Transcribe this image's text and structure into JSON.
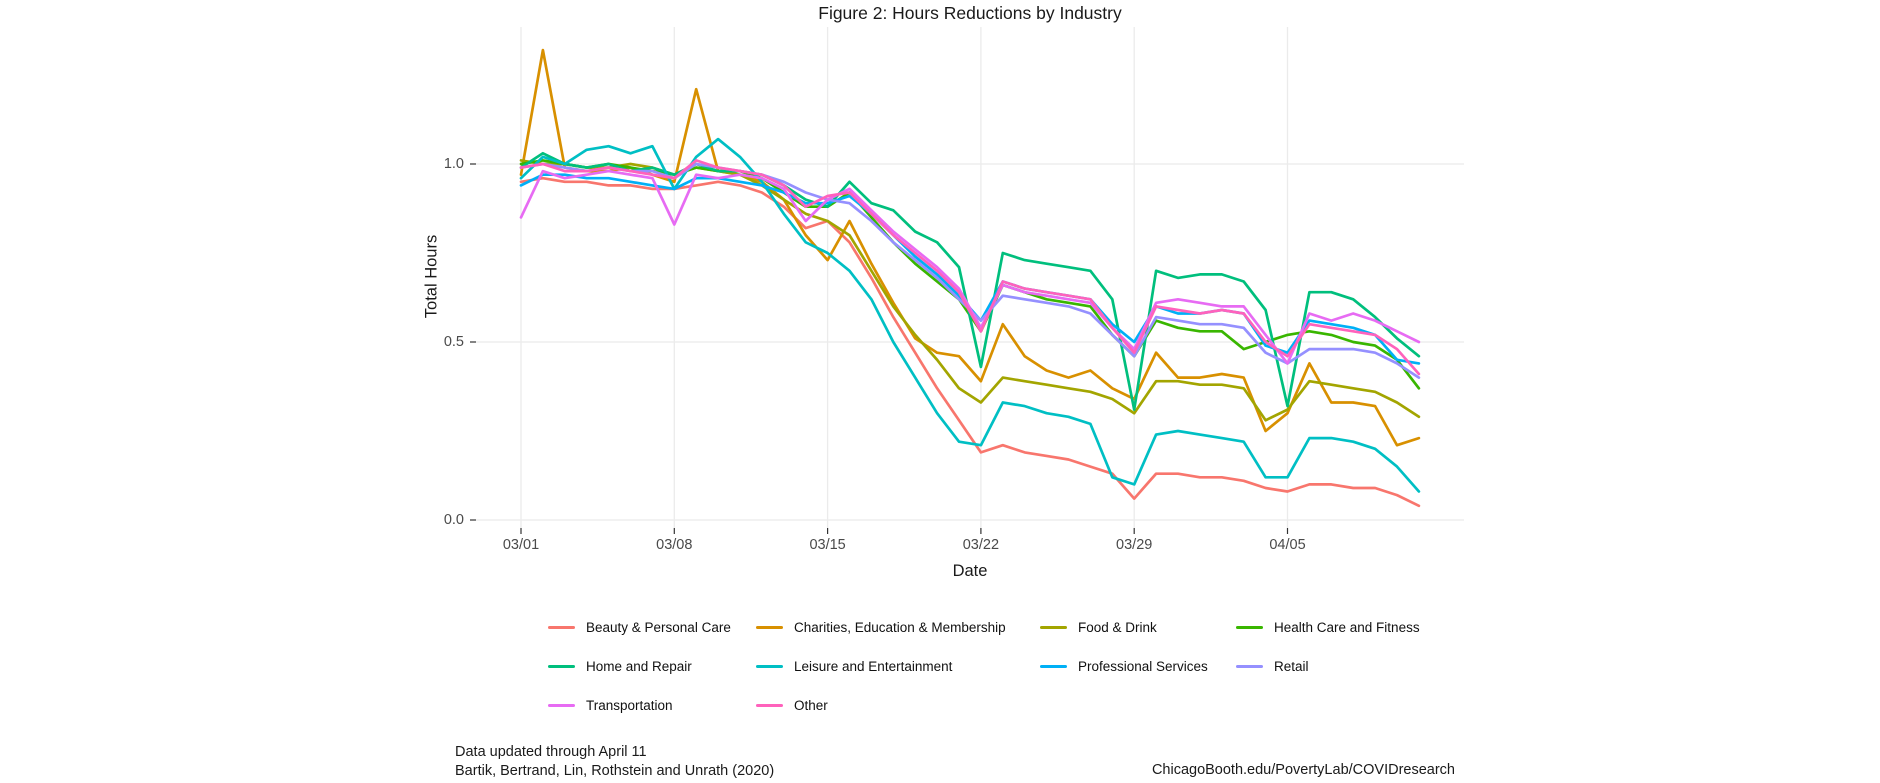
{
  "title": "Figure 2: Hours Reductions by Industry",
  "footer": {
    "note_line1": "Data updated through April 11",
    "note_line2": "Bartik, Bertrand, Lin, Rothstein and Unrath (2020)",
    "source": "ChicagoBooth.edu/PovertyLab/COVIDresearch"
  },
  "chart_data": {
    "type": "line",
    "title": "Figure 2: Hours Reductions by Industry",
    "xlabel": "Date",
    "ylabel": "Total Hours",
    "grid": "white panel, light gray major gridlines, horizontal at each y tick and vertical at each weekly x tick",
    "legend_position": "bottom",
    "ylim": [
      -0.02,
      1.38
    ],
    "x": [
      "03/01",
      "03/02",
      "03/03",
      "03/04",
      "03/05",
      "03/06",
      "03/07",
      "03/08",
      "03/09",
      "03/10",
      "03/11",
      "03/12",
      "03/13",
      "03/14",
      "03/15",
      "03/16",
      "03/17",
      "03/18",
      "03/19",
      "03/20",
      "03/21",
      "03/22",
      "03/23",
      "03/24",
      "03/25",
      "03/26",
      "03/27",
      "03/28",
      "03/29",
      "03/30",
      "03/31",
      "04/01",
      "04/02",
      "04/03",
      "04/04",
      "04/05",
      "04/06",
      "04/07",
      "04/08",
      "04/09",
      "04/10",
      "04/11"
    ],
    "x_ticks": [
      {
        "label": "03/01",
        "index": 0
      },
      {
        "label": "03/08",
        "index": 7
      },
      {
        "label": "03/15",
        "index": 14
      },
      {
        "label": "03/22",
        "index": 21
      },
      {
        "label": "03/29",
        "index": 28
      },
      {
        "label": "04/05",
        "index": 35
      }
    ],
    "y_ticks": [
      {
        "label": "0.0",
        "value": 0.0
      },
      {
        "label": "0.5",
        "value": 0.5
      },
      {
        "label": "1.0",
        "value": 1.0
      }
    ],
    "series": [
      {
        "name": "Beauty & Personal Care",
        "color": "#F8766D",
        "values": [
          0.95,
          0.96,
          0.95,
          0.95,
          0.94,
          0.94,
          0.93,
          0.93,
          0.94,
          0.95,
          0.94,
          0.92,
          0.88,
          0.82,
          0.84,
          0.78,
          0.68,
          0.57,
          0.47,
          0.37,
          0.28,
          0.19,
          0.21,
          0.19,
          0.18,
          0.17,
          0.15,
          0.13,
          0.06,
          0.13,
          0.13,
          0.12,
          0.12,
          0.11,
          0.09,
          0.08,
          0.1,
          0.1,
          0.09,
          0.09,
          0.07,
          0.04
        ]
      },
      {
        "name": "Charities, Education & Membership",
        "color": "#D89000",
        "values": [
          0.97,
          1.32,
          0.99,
          0.98,
          0.98,
          0.99,
          0.97,
          0.95,
          1.21,
          0.98,
          0.97,
          0.95,
          0.9,
          0.8,
          0.73,
          0.84,
          0.72,
          0.61,
          0.51,
          0.47,
          0.46,
          0.39,
          0.55,
          0.46,
          0.42,
          0.4,
          0.42,
          0.37,
          0.34,
          0.47,
          0.4,
          0.4,
          0.41,
          0.4,
          0.25,
          0.3,
          0.44,
          0.33,
          0.33,
          0.32,
          0.21,
          0.23
        ]
      },
      {
        "name": "Food & Drink",
        "color": "#A3A500",
        "values": [
          1.01,
          1.0,
          1.0,
          0.99,
          0.99,
          1.0,
          0.99,
          0.97,
          0.99,
          0.98,
          0.97,
          0.94,
          0.9,
          0.86,
          0.84,
          0.8,
          0.7,
          0.6,
          0.52,
          0.45,
          0.37,
          0.33,
          0.4,
          0.39,
          0.38,
          0.37,
          0.36,
          0.34,
          0.3,
          0.39,
          0.39,
          0.38,
          0.38,
          0.37,
          0.28,
          0.31,
          0.39,
          0.38,
          0.37,
          0.36,
          0.33,
          0.29
        ]
      },
      {
        "name": "Health Care and Fitness",
        "color": "#39B600",
        "values": [
          1.0,
          1.01,
          1.0,
          0.99,
          1.0,
          0.99,
          0.98,
          0.97,
          0.99,
          0.98,
          0.98,
          0.96,
          0.92,
          0.88,
          0.88,
          0.92,
          0.85,
          0.78,
          0.72,
          0.67,
          0.62,
          0.53,
          0.66,
          0.64,
          0.62,
          0.61,
          0.6,
          0.52,
          0.46,
          0.56,
          0.54,
          0.53,
          0.53,
          0.48,
          0.5,
          0.52,
          0.53,
          0.52,
          0.5,
          0.49,
          0.45,
          0.37
        ]
      },
      {
        "name": "Home and Repair",
        "color": "#00BF7D",
        "values": [
          0.99,
          1.03,
          1.0,
          0.99,
          1.0,
          0.98,
          0.99,
          0.97,
          1.0,
          0.98,
          0.98,
          0.97,
          0.94,
          0.9,
          0.88,
          0.95,
          0.89,
          0.87,
          0.81,
          0.78,
          0.71,
          0.43,
          0.75,
          0.73,
          0.72,
          0.71,
          0.7,
          0.62,
          0.31,
          0.7,
          0.68,
          0.69,
          0.69,
          0.67,
          0.59,
          0.32,
          0.64,
          0.64,
          0.62,
          0.57,
          0.51,
          0.46
        ]
      },
      {
        "name": "Leisure and Entertainment",
        "color": "#00BFC4",
        "values": [
          0.96,
          1.02,
          1.0,
          1.04,
          1.05,
          1.03,
          1.05,
          0.93,
          1.02,
          1.07,
          1.02,
          0.95,
          0.86,
          0.78,
          0.75,
          0.7,
          0.62,
          0.5,
          0.4,
          0.3,
          0.22,
          0.21,
          0.33,
          0.32,
          0.3,
          0.29,
          0.27,
          0.12,
          0.1,
          0.24,
          0.25,
          0.24,
          0.23,
          0.22,
          0.12,
          0.12,
          0.23,
          0.23,
          0.22,
          0.2,
          0.15,
          0.08
        ]
      },
      {
        "name": "Professional Services",
        "color": "#00B0F6",
        "values": [
          0.94,
          0.97,
          0.97,
          0.96,
          0.96,
          0.95,
          0.94,
          0.93,
          0.96,
          0.96,
          0.95,
          0.94,
          0.92,
          0.89,
          0.89,
          0.91,
          0.86,
          0.8,
          0.74,
          0.69,
          0.63,
          0.56,
          0.67,
          0.65,
          0.64,
          0.63,
          0.62,
          0.55,
          0.5,
          0.6,
          0.58,
          0.58,
          0.59,
          0.58,
          0.49,
          0.47,
          0.56,
          0.55,
          0.54,
          0.52,
          0.45,
          0.44
        ]
      },
      {
        "name": "Retail",
        "color": "#9590FF",
        "values": [
          0.99,
          1.0,
          0.99,
          0.98,
          0.99,
          0.98,
          0.98,
          0.96,
          1.0,
          0.99,
          0.98,
          0.97,
          0.95,
          0.92,
          0.9,
          0.89,
          0.84,
          0.78,
          0.73,
          0.68,
          0.62,
          0.56,
          0.63,
          0.62,
          0.61,
          0.6,
          0.58,
          0.52,
          0.46,
          0.57,
          0.56,
          0.55,
          0.55,
          0.54,
          0.47,
          0.44,
          0.48,
          0.48,
          0.48,
          0.47,
          0.44,
          0.4
        ]
      },
      {
        "name": "Transportation",
        "color": "#E76BF3",
        "values": [
          0.85,
          0.98,
          0.96,
          0.97,
          0.98,
          0.97,
          0.96,
          0.83,
          0.97,
          0.96,
          0.97,
          0.96,
          0.93,
          0.84,
          0.9,
          0.93,
          0.87,
          0.81,
          0.76,
          0.71,
          0.65,
          0.54,
          0.66,
          0.64,
          0.63,
          0.62,
          0.61,
          0.54,
          0.48,
          0.61,
          0.62,
          0.61,
          0.6,
          0.6,
          0.52,
          0.44,
          0.58,
          0.56,
          0.58,
          0.56,
          0.53,
          0.5
        ]
      },
      {
        "name": "Other",
        "color": "#FF62BC",
        "values": [
          0.99,
          1.0,
          0.98,
          0.98,
          0.99,
          0.98,
          0.97,
          0.96,
          1.01,
          0.99,
          0.98,
          0.97,
          0.94,
          0.88,
          0.91,
          0.92,
          0.86,
          0.8,
          0.75,
          0.7,
          0.64,
          0.53,
          0.67,
          0.65,
          0.64,
          0.63,
          0.62,
          0.54,
          0.47,
          0.6,
          0.59,
          0.58,
          0.59,
          0.58,
          0.5,
          0.46,
          0.55,
          0.54,
          0.53,
          0.52,
          0.48,
          0.41
        ]
      }
    ]
  }
}
